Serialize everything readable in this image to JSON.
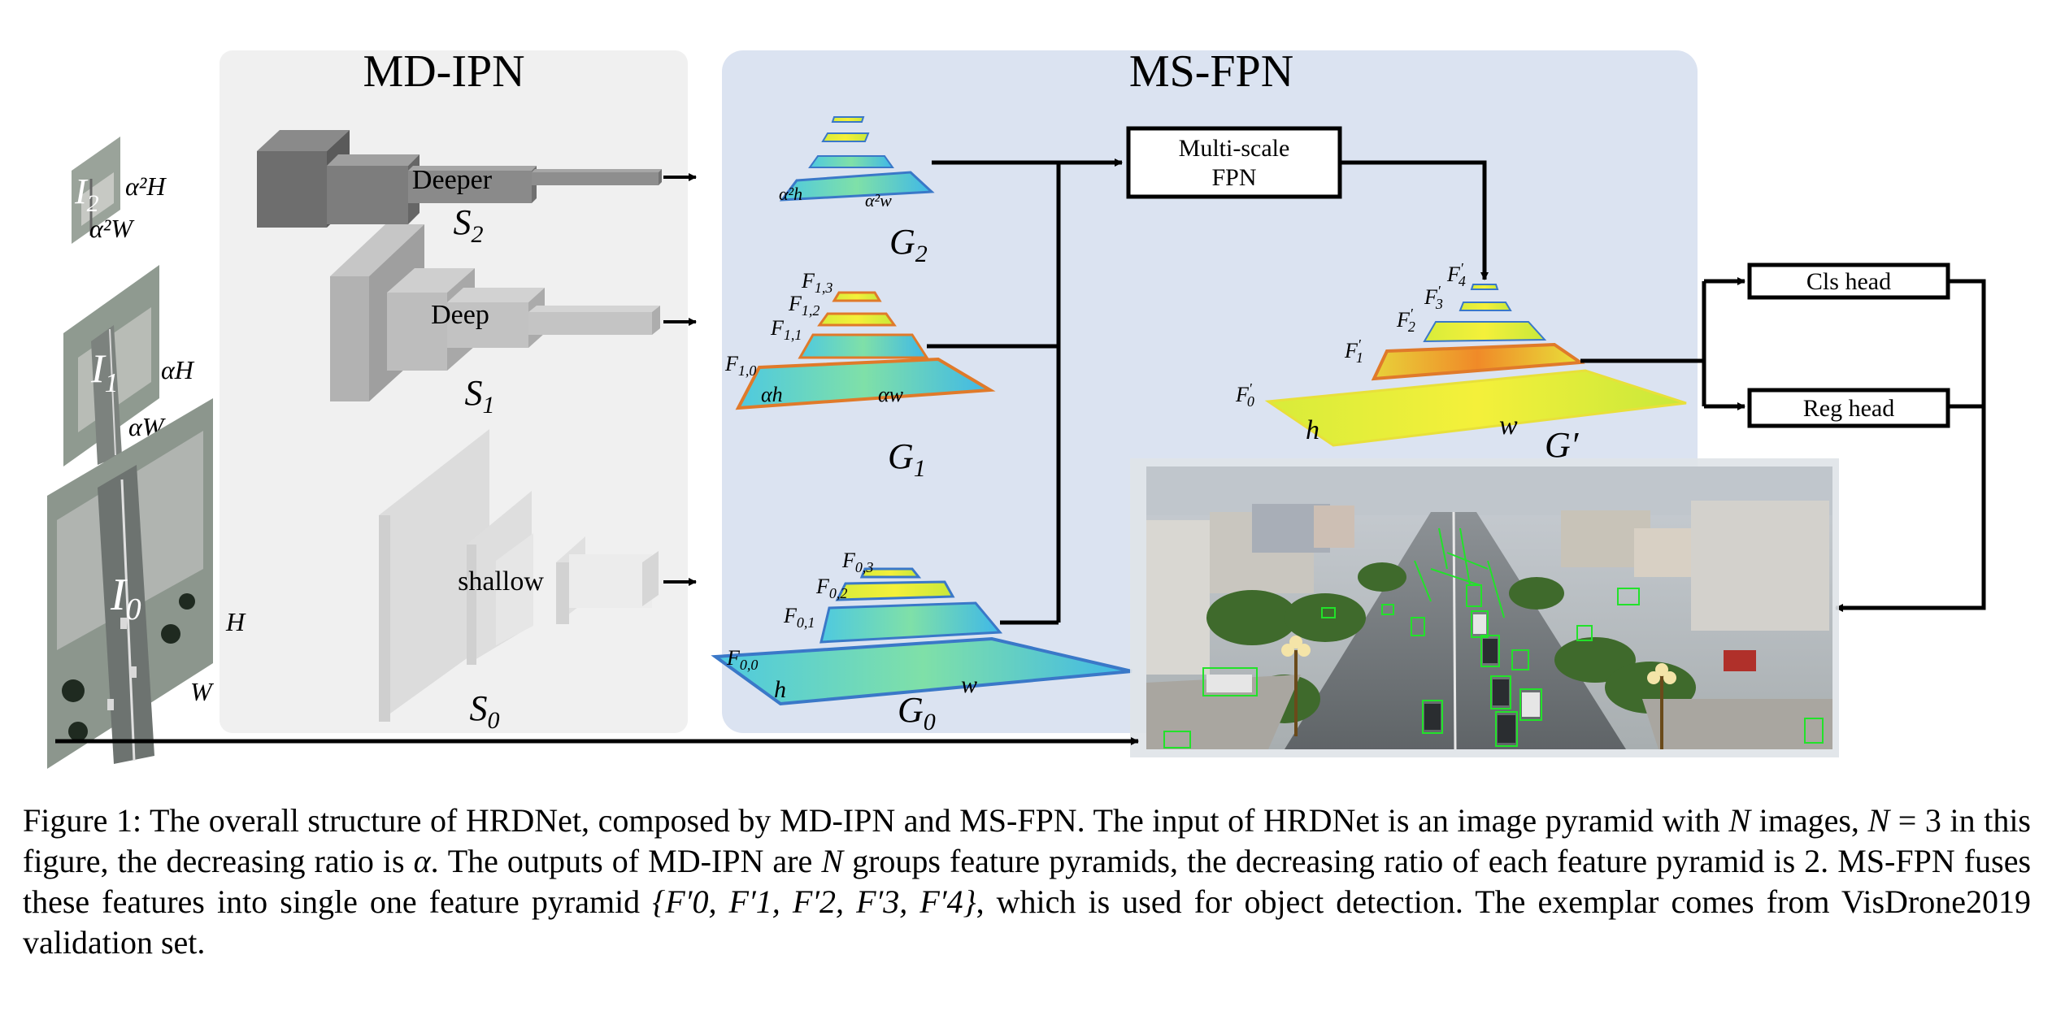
{
  "panels": {
    "mdipn_title": "MD-IPN",
    "msfpn_title": "MS-FPN"
  },
  "inputs": {
    "i2": {
      "name": "I",
      "sub": "2",
      "h": "α²H",
      "w": "α²W"
    },
    "i1": {
      "name": "I",
      "sub": "1",
      "h": "αH",
      "w": "αW"
    },
    "i0": {
      "name": "I",
      "sub": "0",
      "h": "H",
      "w": "W"
    }
  },
  "backbones": {
    "s2": {
      "label": "Deeper",
      "name": "S",
      "sub": "2"
    },
    "s1": {
      "label": "Deep",
      "name": "S",
      "sub": "1"
    },
    "s0": {
      "label": "shallow",
      "name": "S",
      "sub": "0"
    }
  },
  "pyramids": {
    "g2": {
      "name": "G",
      "sub": "2",
      "h": "α²h",
      "w": "α²w"
    },
    "g1": {
      "name": "G",
      "sub": "1",
      "h": "αh",
      "w": "αw",
      "levels": [
        "F1,3",
        "F1,2",
        "F1,1",
        "F1,0"
      ]
    },
    "g0": {
      "name": "G",
      "sub": "0",
      "h": "h",
      "w": "w",
      "levels": [
        "F0,3",
        "F0,2",
        "F0,1",
        "F0,0"
      ]
    }
  },
  "fusion": {
    "box_line1": "Multi-scale",
    "box_line2": "FPN",
    "output_name": "G′",
    "h": "h",
    "w": "w",
    "levels": [
      "F′4",
      "F′3",
      "F′2",
      "F′1",
      "F′0"
    ]
  },
  "heads": {
    "cls": "Cls head",
    "reg": "Reg head"
  },
  "caption": {
    "t1": "Figure 1: The overall structure of HRDNet, composed by MD-IPN and MS-FPN. The input of HRDNet is an image pyramid with ",
    "n1": "N",
    "t2": " images, ",
    "n2": "N",
    "t3": " = 3 in this figure, the decreasing ratio is ",
    "alpha": "α",
    "t4": ". The outputs of MD-IPN are ",
    "n3": "N",
    "t5": " groups feature pyramids, the decreasing ratio of each feature pyramid is 2. MS-FPN fuses these features into single one feature pyramid ",
    "set": "{F′0, F′1, F′2, F′3, F′4}",
    "t6": ", which is used for object detection. The exemplar comes from VisDrone2019 validation set."
  },
  "colors": {
    "panel_gray": "#f0f0f0",
    "panel_blue": "#dbe3f1",
    "feature_green": "#35c9a8",
    "feature_yellow": "#e8f03a",
    "feature_border_blue": "#3a78c8",
    "feature_border_orange": "#e07a2a",
    "detection_green": "#22e22a"
  }
}
